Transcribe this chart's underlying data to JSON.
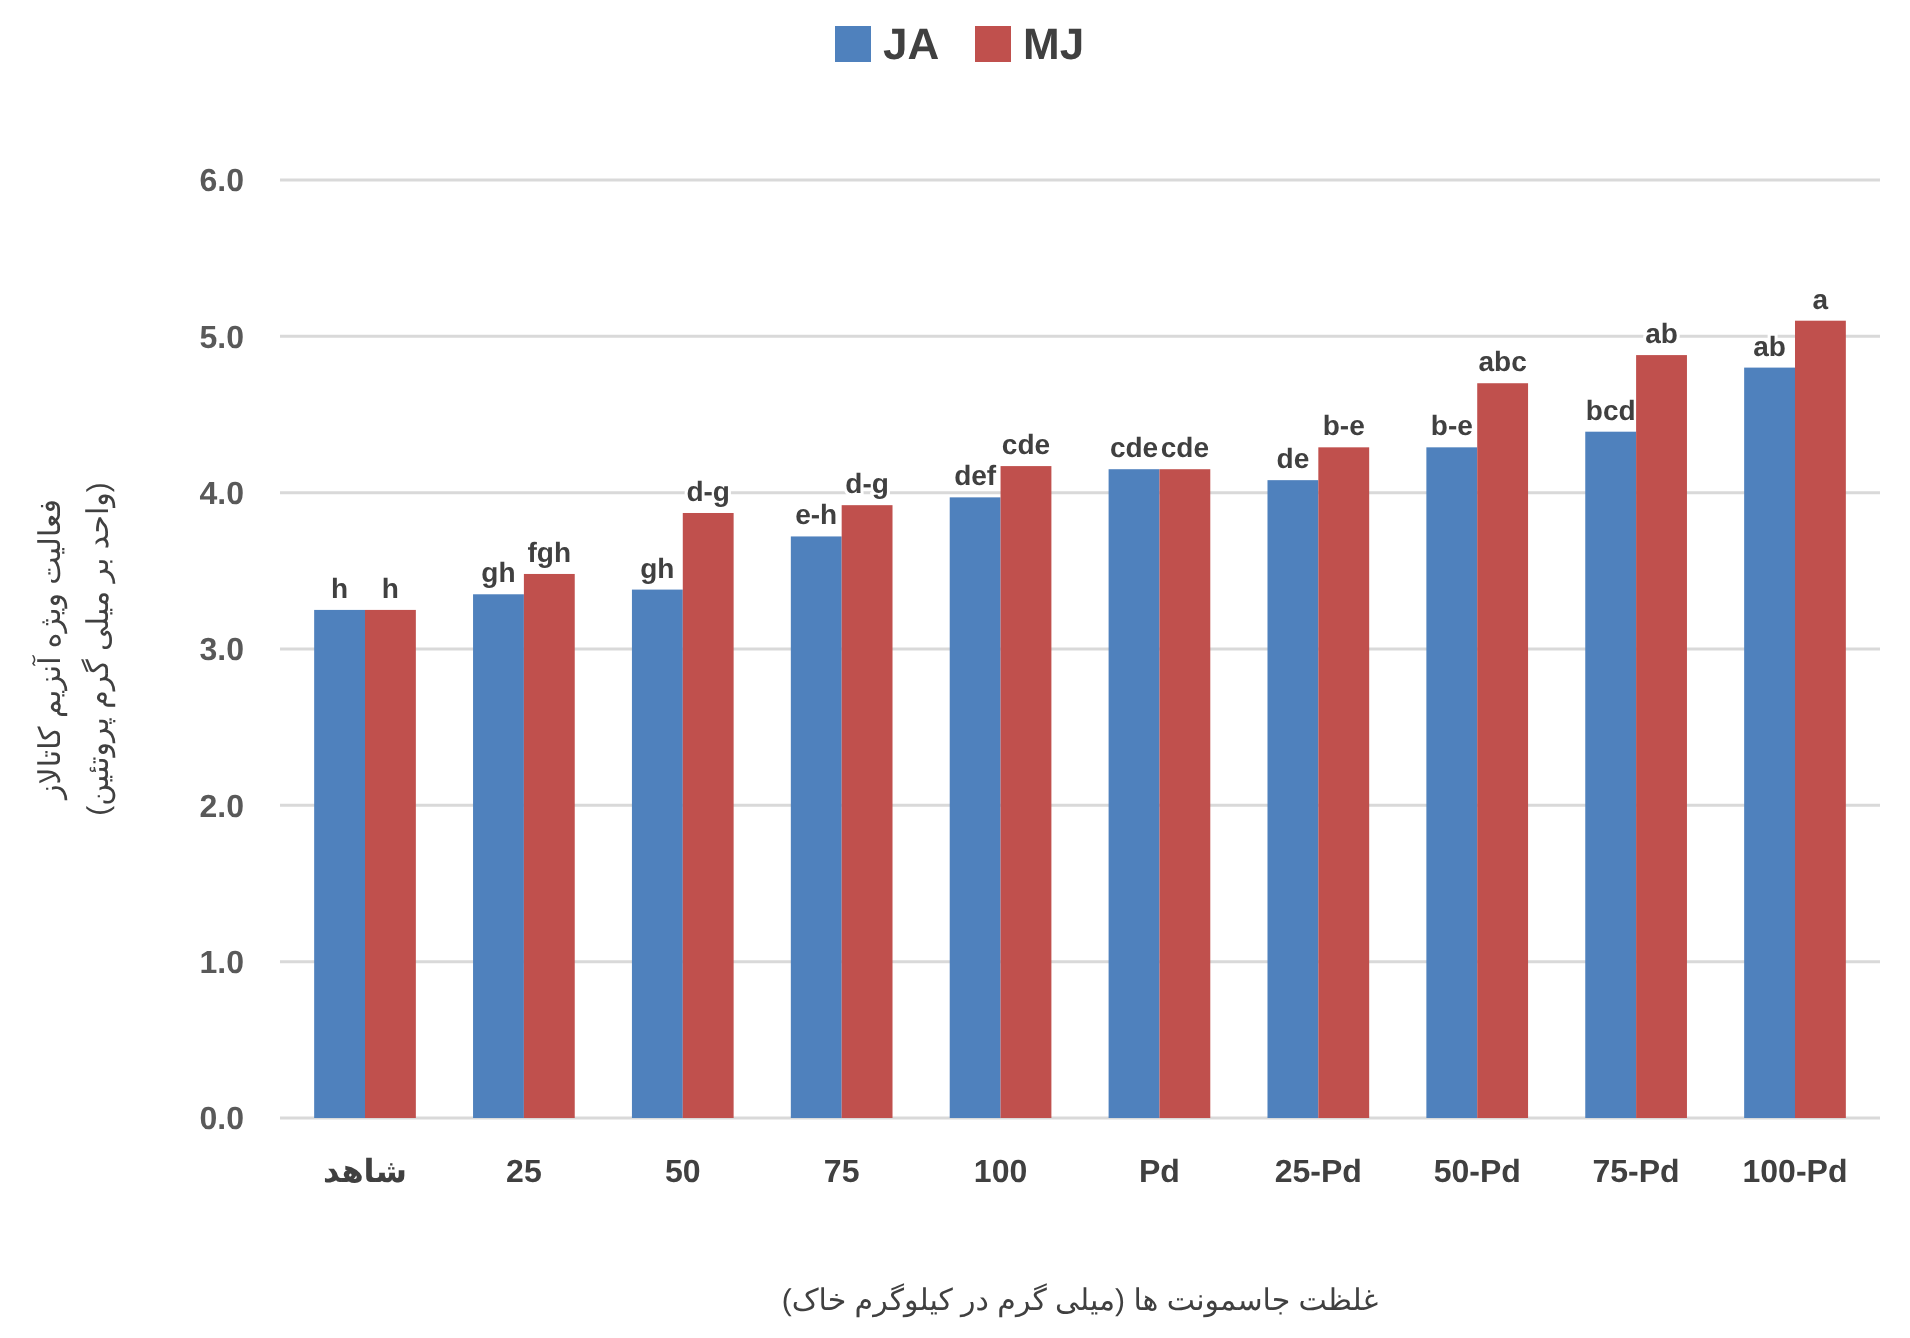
{
  "chart_data": {
    "type": "bar",
    "categories": [
      "شاهد",
      "25",
      "50",
      "75",
      "100",
      "Pd",
      "25-Pd",
      "50-Pd",
      "75-Pd",
      "100-Pd"
    ],
    "series": [
      {
        "name": "JA",
        "color": "#4f81bd",
        "values": [
          3.25,
          3.35,
          3.38,
          3.72,
          3.97,
          4.15,
          4.08,
          4.29,
          4.39,
          4.8
        ],
        "value_labels": [
          "h",
          "gh",
          "gh",
          "e-h",
          "def",
          "cde",
          "de",
          "b-e",
          "bcd",
          "ab"
        ]
      },
      {
        "name": "MJ",
        "color": "#c0504d",
        "values": [
          3.25,
          3.48,
          3.87,
          3.92,
          4.17,
          4.15,
          4.29,
          4.7,
          4.88,
          5.1
        ],
        "value_labels": [
          "h",
          "fgh",
          "d-g",
          "d-g",
          "cde",
          "cde",
          "b-e",
          "abc",
          "ab",
          "a"
        ]
      }
    ],
    "xlabel": "غلظت جاسمونت ها (میلی گرم در کیلوگرم خاک)",
    "ylabel": "فعالیت ویژه آنزیم کاتالاز\n(واحد بر میلی گرم پروتئین)",
    "ylim": [
      0,
      6
    ],
    "yticks": [
      {
        "value": 0,
        "label": "0.0"
      },
      {
        "value": 1,
        "label": "1.0"
      },
      {
        "value": 2,
        "label": "2.0"
      },
      {
        "value": 3,
        "label": "3.0"
      },
      {
        "value": 4,
        "label": "4.0"
      },
      {
        "value": 5,
        "label": "5.0"
      },
      {
        "value": 6,
        "label": "6.0"
      }
    ],
    "grid": "y",
    "legend": "top"
  }
}
